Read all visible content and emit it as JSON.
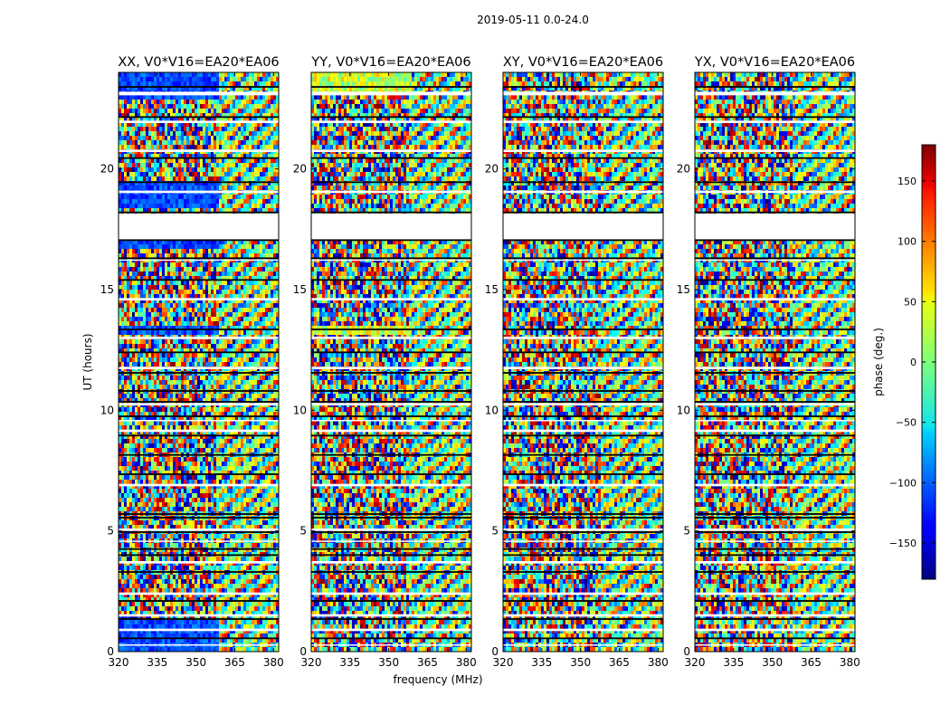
{
  "chart_data": {
    "type": "heatmap",
    "suptitle": "2019-05-11 0.0-24.0",
    "xlabel": "frequency (MHz)",
    "ylabel": "UT (hours)",
    "xlim": [
      320,
      382
    ],
    "ylim": [
      0,
      24
    ],
    "xticks": [
      320,
      335,
      350,
      365,
      380
    ],
    "yticks": [
      0,
      5,
      10,
      15,
      20
    ],
    "panels": [
      {
        "title": "XX, V0*V16=EA20*EA06",
        "key": "xx"
      },
      {
        "title": "YY, V0*V16=EA20*EA06",
        "key": "yy"
      },
      {
        "title": "XY, V0*V16=EA20*EA06",
        "key": "xy"
      },
      {
        "title": "YX, V0*V16=EA20*EA06",
        "key": "yx"
      }
    ],
    "colorbar": {
      "label": "phase (deg.)",
      "range": [
        -180,
        180
      ],
      "ticks": [
        150,
        100,
        50,
        0,
        -50,
        -100,
        -150
      ],
      "tick_labels": [
        "150",
        "100",
        "50",
        "0",
        "−50",
        "−100",
        "−150"
      ],
      "colormap": "jet"
    },
    "flagged_ut_ranges": [
      [
        17.05,
        18.15
      ],
      [
        23.05,
        23.2
      ],
      [
        21.9,
        22.0
      ],
      [
        20.7,
        20.8
      ],
      [
        19.0,
        19.1
      ],
      [
        16.2,
        16.25
      ],
      [
        14.55,
        14.65
      ],
      [
        12.95,
        13.05
      ],
      [
        11.7,
        11.8
      ],
      [
        10.2,
        10.3
      ],
      [
        9.55,
        9.6
      ],
      [
        9.1,
        9.2
      ],
      [
        6.85,
        6.95
      ],
      [
        5.0,
        5.1
      ],
      [
        4.55,
        4.6
      ],
      [
        3.65,
        3.75
      ],
      [
        2.35,
        2.45
      ],
      [
        1.45,
        1.55
      ],
      [
        0.85,
        0.95
      ],
      [
        0.25,
        0.3
      ]
    ],
    "black_ut_lines": [
      23.4,
      22.15,
      20.45,
      19.45,
      18.2,
      17.05,
      16.3,
      15.4,
      13.35,
      12.4,
      11.55,
      10.8,
      10.35,
      9.75,
      8.95,
      8.15,
      7.35,
      5.7,
      5.55,
      4.95,
      4.25,
      4.0,
      3.3,
      2.1,
      1.35,
      0.55
    ]
  }
}
